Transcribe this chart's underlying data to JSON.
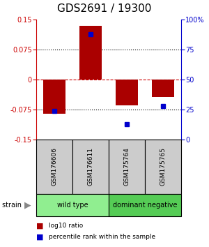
{
  "title": "GDS2691 / 19300",
  "samples": [
    "GSM176606",
    "GSM176611",
    "GSM175764",
    "GSM175765"
  ],
  "log10_ratio": [
    -0.086,
    0.135,
    -0.065,
    -0.043
  ],
  "percentile_rank": [
    24,
    88,
    13,
    28
  ],
  "groups": [
    {
      "name": "wild type",
      "samples": [
        0,
        1
      ],
      "color": "#90EE90"
    },
    {
      "name": "dominant negative",
      "samples": [
        2,
        3
      ],
      "color": "#55CC55"
    }
  ],
  "ylim": [
    -0.15,
    0.15
  ],
  "yticks_left": [
    -0.15,
    -0.075,
    0,
    0.075,
    0.15
  ],
  "yticks_right": [
    0,
    25,
    50,
    75,
    100
  ],
  "left_axis_color": "#cc0000",
  "right_axis_color": "#0000cc",
  "bar_color": "#aa0000",
  "dot_color": "#0000cc",
  "hline_color": "#cc0000",
  "grid_color": "#000000",
  "bg_color": "#ffffff",
  "sample_box_color": "#cccccc",
  "legend_bar_label": "log10 ratio",
  "legend_dot_label": "percentile rank within the sample",
  "strain_label": "strain"
}
